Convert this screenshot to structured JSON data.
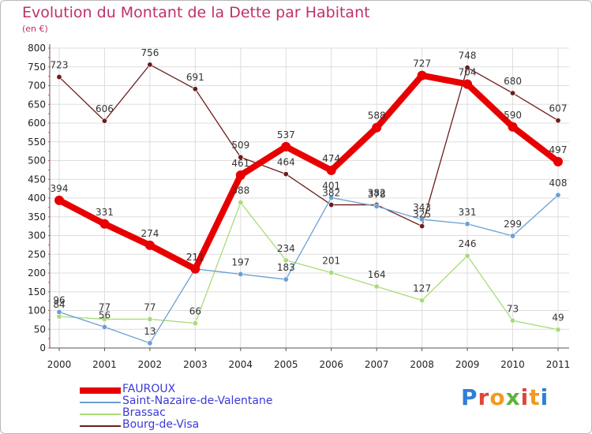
{
  "chart_data": {
    "type": "line",
    "title": "Evolution du Montant de la Dette par Habitant",
    "subtitle": "(en €)",
    "x": [
      "2000",
      "2001",
      "2002",
      "2003",
      "2004",
      "2005",
      "2006",
      "2007",
      "2008",
      "2009",
      "2010",
      "2011"
    ],
    "ylim": [
      0,
      800
    ],
    "yticks": [
      0,
      50,
      100,
      150,
      200,
      250,
      300,
      350,
      400,
      450,
      500,
      550,
      600,
      650,
      700,
      750,
      800
    ],
    "grid": true,
    "legend_position": "bottom-left",
    "series": [
      {
        "name": "FAUROUX",
        "color": "#e80000",
        "values": [
          394,
          331,
          274,
          211,
          461,
          537,
          474,
          588,
          727,
          704,
          590,
          497
        ],
        "labels": [
          "394",
          "331",
          "274",
          "211",
          "461",
          "537",
          "474",
          "588",
          "727",
          "704",
          "590",
          "497"
        ]
      },
      {
        "name": "Saint-Nazaire-de-Valentane",
        "color": "#6a9fd4",
        "values": [
          96,
          56,
          13,
          211,
          197,
          183,
          401,
          378,
          343,
          331,
          299,
          408
        ],
        "labels": [
          "96",
          "56",
          "13",
          "211",
          "197",
          "183",
          "401",
          "378",
          "343",
          "331",
          "299",
          "408"
        ]
      },
      {
        "name": "Brassac",
        "color": "#a8dc78",
        "values": [
          84,
          77,
          77,
          66,
          388,
          234,
          201,
          164,
          127,
          246,
          73,
          49
        ],
        "labels": [
          "84",
          "77",
          "77",
          "66",
          "388",
          "234",
          "201",
          "164",
          "127",
          "246",
          "73",
          "49"
        ]
      },
      {
        "name": "Bourg-de-Visa",
        "color": "#6b1d1d",
        "values": [
          723,
          606,
          756,
          691,
          509,
          464,
          382,
          382,
          325,
          748,
          680,
          607
        ],
        "labels": [
          "723",
          "606",
          "756",
          "691",
          "509",
          "464",
          "382",
          "382",
          "325",
          "748",
          "680",
          "607"
        ]
      }
    ]
  },
  "logo_text": "Proxiti",
  "colors": {
    "title": "#c0306a",
    "legend_text": "#3a3ad8",
    "grid": "#dddddd"
  }
}
